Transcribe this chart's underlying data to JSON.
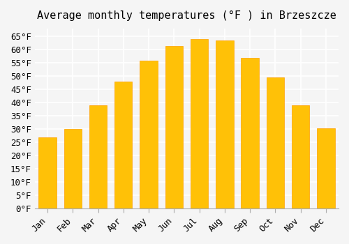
{
  "title": "Average monthly temperatures (°F ) in Brzeszcze",
  "months": [
    "Jan",
    "Feb",
    "Mar",
    "Apr",
    "May",
    "Jun",
    "Jul",
    "Aug",
    "Sep",
    "Oct",
    "Nov",
    "Dec"
  ],
  "values": [
    27,
    30,
    39,
    48,
    56,
    61.5,
    64,
    63.5,
    57,
    49.5,
    39,
    30.5
  ],
  "bar_color": "#FFC107",
  "bar_edge_color": "#FFA000",
  "ylim": [
    0,
    68
  ],
  "yticks": [
    0,
    5,
    10,
    15,
    20,
    25,
    30,
    35,
    40,
    45,
    50,
    55,
    60,
    65
  ],
  "ytick_labels": [
    "0°F",
    "5°F",
    "10°F",
    "15°F",
    "20°F",
    "25°F",
    "30°F",
    "35°F",
    "40°F",
    "45°F",
    "50°F",
    "55°F",
    "60°F",
    "65°F"
  ],
  "title_fontsize": 11,
  "tick_fontsize": 9,
  "background_color": "#f5f5f5",
  "grid_color": "#ffffff",
  "font_family": "monospace"
}
